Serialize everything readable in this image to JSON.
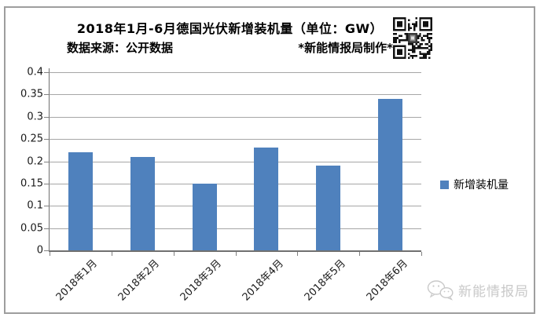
{
  "header": {
    "source": "数据来源：公开数据",
    "credit": "*新能情报局制作*"
  },
  "chart_data": {
    "type": "bar",
    "title": "2018年1月-6月德国光伏新增装机量（单位：GW）",
    "categories": [
      "2018年1月",
      "2018年2月",
      "2018年3月",
      "2018年4月",
      "2018年5月",
      "2018年6月"
    ],
    "series": [
      {
        "name": "新增装机量",
        "values": [
          0.22,
          0.21,
          0.15,
          0.23,
          0.19,
          0.34
        ]
      }
    ],
    "xlabel": "",
    "ylabel": "",
    "ylim": [
      0,
      0.4
    ],
    "ytick_step": 0.05,
    "ytick_labels": [
      "0",
      "0.05",
      "0.1",
      "0.15",
      "0.2",
      "0.25",
      "0.3",
      "0.35",
      "0.4"
    ],
    "grid": true,
    "legend_position": "right",
    "bar_color": "#4f81bd"
  },
  "watermark": {
    "text": "新能情报局"
  },
  "icons": {
    "qr_code": "qr-code",
    "wechat_logo": "wechat-bubbles"
  },
  "colors": {
    "bar": "#4f81bd",
    "gridline": "#a6a6a6",
    "axis": "#707070",
    "frame_border": "#9e9e9e",
    "watermark": "#c9c9c9",
    "title_text": "#000000"
  }
}
